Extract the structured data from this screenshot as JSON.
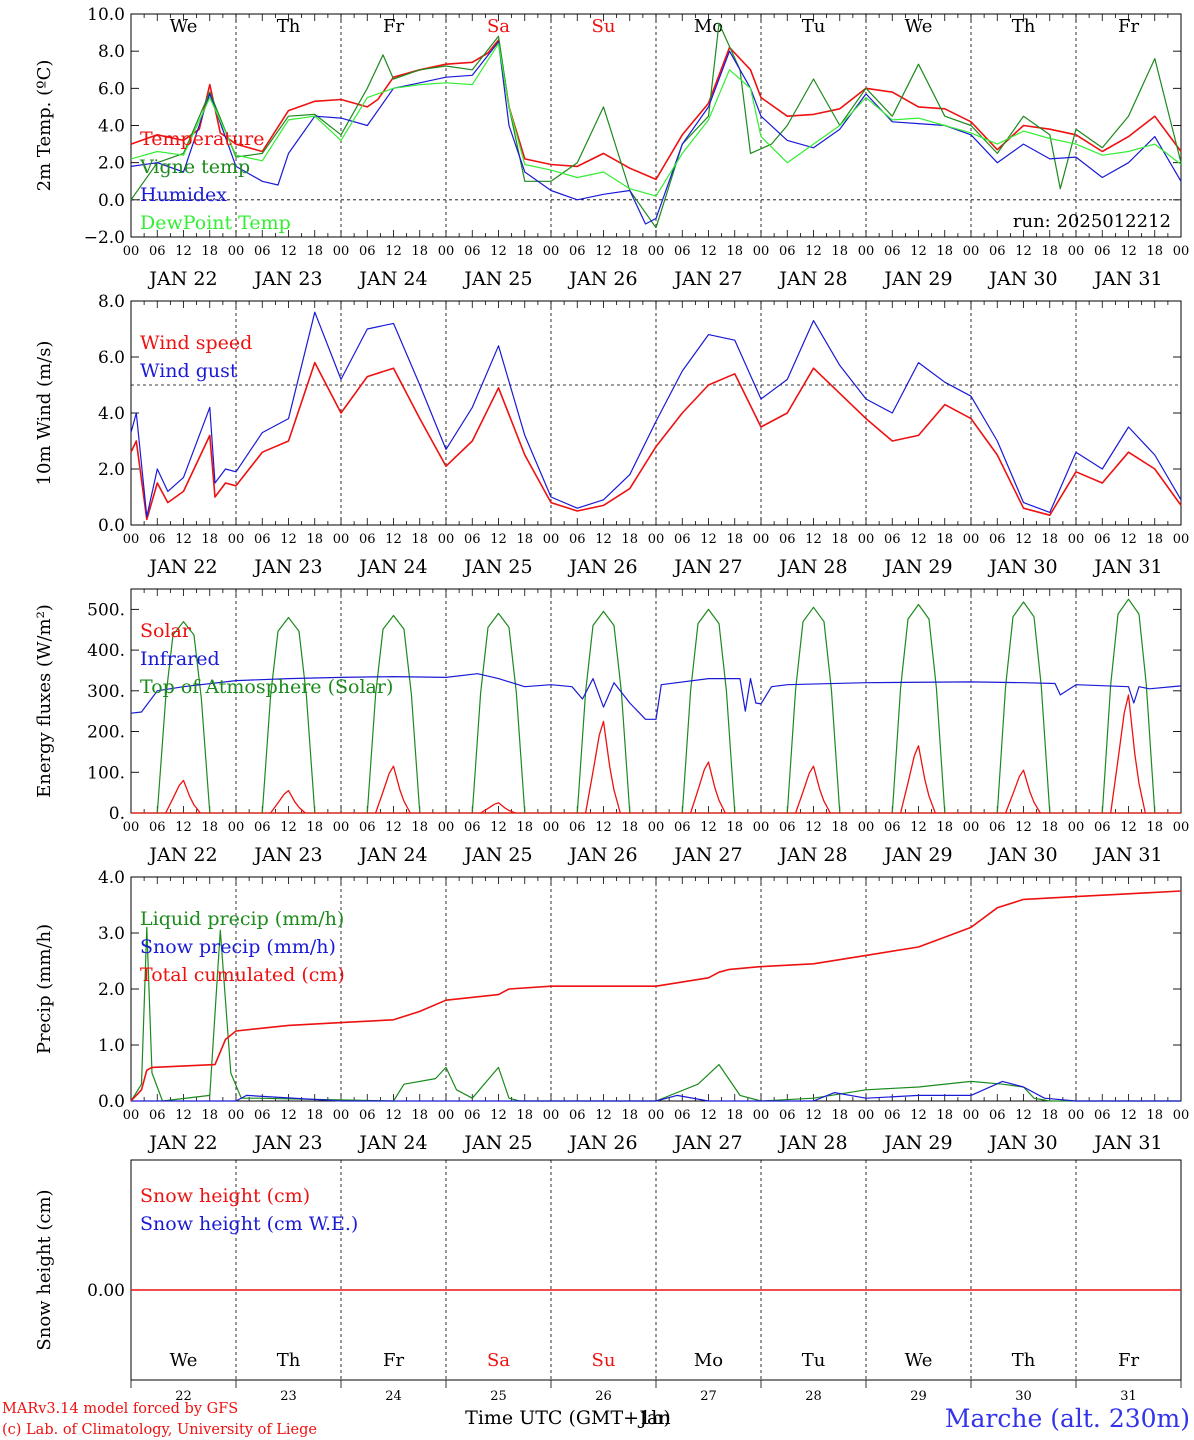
{
  "colors": {
    "red": "#ee1111",
    "green": "#1c8a1c",
    "blue": "#1a1ad6",
    "lightgreen": "#33ee33",
    "darkblue": "#1010b0",
    "title_blue": "#3333ee"
  },
  "x_axis": {
    "hour_labels": [
      "00",
      "06",
      "12",
      "18"
    ],
    "final_hour_label": "00",
    "date_labels": [
      "JAN 22",
      "JAN 23",
      "JAN 24",
      "JAN 25",
      "JAN 26",
      "JAN 27",
      "JAN 28",
      "JAN 29",
      "JAN 30",
      "JAN 31"
    ],
    "weekday_labels": [
      "We",
      "Th",
      "Fr",
      "Sa",
      "Su",
      "Mo",
      "Tu",
      "We",
      "Th",
      "Fr"
    ],
    "weekday_colors": [
      "black",
      "black",
      "black",
      "red",
      "red",
      "black",
      "black",
      "black",
      "black",
      "black"
    ],
    "day_numbers": [
      "22",
      "23",
      "24",
      "25",
      "26",
      "27",
      "28",
      "29",
      "30",
      "31"
    ],
    "xlabel": "Time UTC (GMT+1h)",
    "xlabel_overlap": "Jan"
  },
  "footer": {
    "credit_line1": "MARv3.14 model forced by GFS",
    "credit_line2": "(c) Lab. of Climatology, University of Liege",
    "station": "Marche (alt. 230m)"
  },
  "chart_data": [
    {
      "type": "line",
      "ylabel": "2m Temp. (ºC)",
      "ylim": [
        -2,
        10
      ],
      "ytick_values": [
        -2,
        0,
        2,
        4,
        6,
        8,
        10
      ],
      "ytick_labels": [
        "−2.0",
        "0.0",
        "2.0",
        "4.0",
        "6.0",
        "8.0",
        "10.0"
      ],
      "ref_line": 0,
      "annotation": "run: 2025012212",
      "legend": [
        "Temperature",
        "Vigne temp",
        "Humidex",
        "DewPoint Temp"
      ],
      "x_unit": "days since JAN 22 00 UTC",
      "series": [
        {
          "name": "Temperature",
          "color": "red",
          "x": [
            0,
            0.25,
            0.5,
            0.65,
            0.75,
            0.85,
            1.0,
            1.25,
            1.5,
            1.75,
            2.0,
            2.25,
            2.35,
            2.5,
            2.75,
            3.0,
            3.25,
            3.4,
            3.5,
            3.6,
            3.75,
            4.0,
            4.25,
            4.5,
            4.75,
            5.0,
            5.25,
            5.5,
            5.7,
            5.9,
            6.0,
            6.25,
            6.5,
            6.75,
            7.0,
            7.25,
            7.5,
            7.75,
            8.0,
            8.25,
            8.5,
            8.75,
            9.0,
            9.25,
            9.5,
            9.75,
            10.0
          ],
          "y": [
            3.0,
            3.5,
            3.2,
            3.8,
            6.2,
            3.6,
            3.0,
            2.6,
            4.8,
            5.3,
            5.4,
            5.0,
            5.4,
            6.6,
            7.0,
            7.3,
            7.4,
            7.9,
            8.6,
            5.0,
            2.2,
            1.9,
            1.8,
            2.5,
            1.7,
            1.1,
            3.5,
            5.2,
            8.2,
            7.0,
            5.5,
            4.5,
            4.6,
            4.9,
            6.0,
            5.8,
            5.0,
            4.9,
            4.2,
            2.7,
            4.0,
            3.8,
            3.5,
            2.6,
            3.4,
            4.5,
            2.6
          ]
        },
        {
          "name": "Vigne temp",
          "color": "green",
          "x": [
            0,
            0.25,
            0.5,
            0.75,
            1.0,
            1.25,
            1.5,
            1.75,
            2.0,
            2.25,
            2.4,
            2.5,
            2.75,
            3.0,
            3.25,
            3.5,
            3.6,
            3.75,
            4.0,
            4.25,
            4.5,
            4.75,
            5.0,
            5.25,
            5.5,
            5.6,
            5.8,
            5.9,
            6.1,
            6.25,
            6.5,
            6.75,
            7.0,
            7.25,
            7.5,
            7.75,
            8.0,
            8.25,
            8.5,
            8.75,
            8.85,
            9.0,
            9.25,
            9.5,
            9.75,
            10.0
          ],
          "y": [
            0.0,
            2.0,
            2.5,
            5.8,
            2.3,
            2.5,
            4.5,
            4.6,
            3.5,
            6.0,
            7.8,
            6.5,
            7.0,
            7.2,
            7.0,
            8.8,
            5.0,
            1.0,
            1.0,
            2.0,
            5.0,
            0.5,
            -1.5,
            3.0,
            4.5,
            9.5,
            7.0,
            2.5,
            3.0,
            4.0,
            6.5,
            4.0,
            6.0,
            4.5,
            7.3,
            4.5,
            4.0,
            2.5,
            4.5,
            3.5,
            0.6,
            3.8,
            2.8,
            4.5,
            7.6,
            2.0
          ]
        },
        {
          "name": "Humidex",
          "color": "blue",
          "x": [
            0,
            0.25,
            0.5,
            0.75,
            1.0,
            1.25,
            1.4,
            1.5,
            1.75,
            2.0,
            2.25,
            2.5,
            2.75,
            3.0,
            3.25,
            3.5,
            3.6,
            3.75,
            4.0,
            4.25,
            4.5,
            4.75,
            4.9,
            5.0,
            5.25,
            5.5,
            5.7,
            5.9,
            6.0,
            6.25,
            6.5,
            6.75,
            7.0,
            7.25,
            7.5,
            7.75,
            8.0,
            8.25,
            8.5,
            8.75,
            9.0,
            9.25,
            9.5,
            9.75,
            10.0
          ],
          "y": [
            1.8,
            2.0,
            1.5,
            5.7,
            1.8,
            1.0,
            0.8,
            2.5,
            4.5,
            4.4,
            4.0,
            6.0,
            6.3,
            6.6,
            6.7,
            8.5,
            4.0,
            1.5,
            0.5,
            0.0,
            0.3,
            0.5,
            -1.3,
            -1.0,
            3.0,
            5.0,
            8.0,
            6.0,
            4.5,
            3.2,
            2.8,
            3.8,
            5.7,
            4.2,
            4.1,
            4.0,
            3.5,
            2.0,
            3.0,
            2.2,
            2.3,
            1.2,
            2.0,
            3.4,
            1.0
          ]
        },
        {
          "name": "DewPoint Temp",
          "color": "lightgreen",
          "x": [
            0,
            0.25,
            0.5,
            0.75,
            1.0,
            1.25,
            1.5,
            1.75,
            2.0,
            2.25,
            2.5,
            2.75,
            3.0,
            3.25,
            3.5,
            3.6,
            3.75,
            4.0,
            4.25,
            4.5,
            4.75,
            5.0,
            5.25,
            5.5,
            5.7,
            5.9,
            6.0,
            6.25,
            6.5,
            6.75,
            7.0,
            7.25,
            7.5,
            7.75,
            8.0,
            8.25,
            8.5,
            8.75,
            9.0,
            9.25,
            9.5,
            9.75,
            10.0
          ],
          "y": [
            2.2,
            2.6,
            2.4,
            5.5,
            2.4,
            2.1,
            4.3,
            4.5,
            3.2,
            5.5,
            6.0,
            6.2,
            6.3,
            6.2,
            8.4,
            5.0,
            1.9,
            1.6,
            1.2,
            1.5,
            0.6,
            0.2,
            2.5,
            4.3,
            7.0,
            6.0,
            3.4,
            2.0,
            3.0,
            4.0,
            5.5,
            4.3,
            4.4,
            4.0,
            3.6,
            3.0,
            3.7,
            3.3,
            3.0,
            2.4,
            2.6,
            3.0,
            1.9
          ]
        }
      ]
    },
    {
      "type": "line",
      "ylabel": "10m Wind (m/s)",
      "ylim": [
        0,
        8
      ],
      "ytick_values": [
        0,
        2,
        4,
        6,
        8
      ],
      "ytick_labels": [
        "0.0",
        "2.0",
        "4.0",
        "6.0",
        "8.0"
      ],
      "ref_line": 5,
      "legend": [
        "Wind speed",
        "Wind gust"
      ],
      "series": [
        {
          "name": "Wind speed",
          "color": "red",
          "x": [
            0,
            0.05,
            0.15,
            0.25,
            0.35,
            0.5,
            0.75,
            0.8,
            0.9,
            1.0,
            1.25,
            1.5,
            1.75,
            2.0,
            2.25,
            2.5,
            2.75,
            3.0,
            3.25,
            3.5,
            3.75,
            4.0,
            4.25,
            4.5,
            4.75,
            5.0,
            5.25,
            5.5,
            5.75,
            6.0,
            6.25,
            6.5,
            6.75,
            7.0,
            7.25,
            7.5,
            7.75,
            8.0,
            8.25,
            8.5,
            8.75,
            9.0,
            9.25,
            9.5,
            9.75,
            10.0
          ],
          "y": [
            2.6,
            3.0,
            0.2,
            1.5,
            0.8,
            1.2,
            3.2,
            1.0,
            1.5,
            1.4,
            2.6,
            3.0,
            5.8,
            4.0,
            5.3,
            5.6,
            3.8,
            2.1,
            3.0,
            4.9,
            2.5,
            0.8,
            0.5,
            0.7,
            1.3,
            2.8,
            4.0,
            5.0,
            5.4,
            3.5,
            4.0,
            5.6,
            4.7,
            3.8,
            3.0,
            3.2,
            4.3,
            3.8,
            2.5,
            0.6,
            0.35,
            1.9,
            1.5,
            2.6,
            2.0,
            0.7
          ]
        },
        {
          "name": "Wind gust",
          "color": "blue",
          "x": [
            0,
            0.05,
            0.15,
            0.25,
            0.35,
            0.5,
            0.75,
            0.8,
            0.9,
            1.0,
            1.25,
            1.5,
            1.75,
            2.0,
            2.25,
            2.5,
            2.75,
            3.0,
            3.25,
            3.5,
            3.75,
            4.0,
            4.25,
            4.5,
            4.75,
            5.0,
            5.25,
            5.5,
            5.75,
            6.0,
            6.25,
            6.5,
            6.75,
            7.0,
            7.25,
            7.5,
            7.75,
            8.0,
            8.25,
            8.5,
            8.75,
            9.0,
            9.25,
            9.5,
            9.75,
            10.0
          ],
          "y": [
            3.3,
            4.0,
            0.3,
            2.0,
            1.2,
            1.7,
            4.2,
            1.5,
            2.0,
            1.9,
            3.3,
            3.8,
            7.6,
            5.2,
            7.0,
            7.2,
            5.0,
            2.7,
            4.2,
            6.4,
            3.2,
            1.0,
            0.6,
            0.9,
            1.8,
            3.7,
            5.5,
            6.8,
            6.6,
            4.5,
            5.2,
            7.3,
            5.7,
            4.5,
            4.0,
            5.8,
            5.1,
            4.6,
            3.0,
            0.8,
            0.45,
            2.6,
            2.0,
            3.5,
            2.5,
            0.9
          ]
        }
      ]
    },
    {
      "type": "line",
      "ylabel": "Energy fluxes (W/m²)",
      "ylim": [
        0,
        550
      ],
      "ytick_values": [
        0,
        100,
        200,
        300,
        400,
        500
      ],
      "ytick_labels": [
        "0.",
        "100.",
        "200.",
        "300.",
        "400.",
        "500."
      ],
      "legend": [
        "Solar",
        "Infrared",
        "Top of Atmosphere (Solar)"
      ],
      "toa_daily_peaks": [
        470,
        480,
        485,
        490,
        495,
        500,
        505,
        512,
        518,
        525
      ],
      "solar_daily_peaks": [
        80,
        55,
        115,
        25,
        225,
        125,
        115,
        165,
        105,
        290
      ],
      "series": [
        {
          "name": "Infrared",
          "color": "blue",
          "x": [
            0,
            0.1,
            0.25,
            0.5,
            1.0,
            1.5,
            2.0,
            2.5,
            3.0,
            3.3,
            3.5,
            3.75,
            4.0,
            4.2,
            4.3,
            4.4,
            4.5,
            4.6,
            4.75,
            4.9,
            5.0,
            5.05,
            5.5,
            5.8,
            5.85,
            5.9,
            5.95,
            6.0,
            6.1,
            6.25,
            7.0,
            8.0,
            8.5,
            8.8,
            8.85,
            9.0,
            9.5,
            9.55,
            9.6,
            9.7,
            10.0
          ],
          "y": [
            245,
            248,
            300,
            310,
            325,
            330,
            333,
            335,
            333,
            342,
            330,
            310,
            315,
            310,
            280,
            330,
            260,
            320,
            270,
            230,
            230,
            315,
            330,
            330,
            250,
            330,
            270,
            268,
            310,
            315,
            320,
            322,
            320,
            318,
            290,
            315,
            310,
            270,
            310,
            305,
            312
          ]
        }
      ]
    },
    {
      "type": "line",
      "ylabel": "Precip (mm/h)",
      "ylim": [
        0,
        4
      ],
      "ytick_values": [
        0,
        1,
        2,
        3,
        4
      ],
      "ytick_labels": [
        "0.0",
        "1.0",
        "2.0",
        "3.0",
        "4.0"
      ],
      "legend": [
        "Liquid precip (mm/h)",
        "Snow precip (mm/h)",
        "Total cumulated (cm)"
      ],
      "series": [
        {
          "name": "Liquid precip (mm/h)",
          "color": "green",
          "x": [
            0,
            0.1,
            0.15,
            0.2,
            0.3,
            0.75,
            0.85,
            0.95,
            1.05,
            1.2,
            2.5,
            2.6,
            2.9,
            3.0,
            3.1,
            3.25,
            3.5,
            3.6,
            3.7,
            4.0,
            5.0,
            5.4,
            5.6,
            5.8,
            6.0,
            6.5,
            7.0,
            7.5,
            8.0,
            8.3,
            8.5,
            8.6,
            8.75,
            10.0
          ],
          "y": [
            0,
            0.3,
            3.1,
            0.5,
            0,
            0.1,
            3.05,
            0.5,
            0.05,
            0.05,
            0,
            0.3,
            0.4,
            0.6,
            0.2,
            0.05,
            0.6,
            0.05,
            0,
            0,
            0,
            0.3,
            0.65,
            0.1,
            0,
            0.05,
            0.2,
            0.25,
            0.35,
            0.3,
            0.25,
            0.05,
            0,
            0
          ]
        },
        {
          "name": "Snow precip (mm/h)",
          "color": "blue",
          "x": [
            0,
            1.0,
            1.1,
            2.0,
            5.0,
            5.2,
            5.5,
            6.5,
            6.7,
            7.0,
            7.5,
            8.0,
            8.3,
            8.5,
            8.7,
            9.0,
            10.0
          ],
          "y": [
            0,
            0,
            0.1,
            0,
            0,
            0.1,
            0,
            0,
            0.15,
            0.05,
            0.1,
            0.1,
            0.35,
            0.25,
            0.05,
            0,
            0
          ]
        },
        {
          "name": "Total cumulated (cm)",
          "color": "red",
          "x": [
            0,
            0.1,
            0.15,
            0.2,
            0.8,
            0.9,
            1.0,
            1.5,
            2.0,
            2.5,
            2.75,
            3.0,
            3.5,
            3.6,
            4.0,
            5.0,
            5.5,
            5.6,
            5.7,
            6.0,
            6.5,
            7.0,
            7.5,
            8.0,
            8.25,
            8.5,
            9.0,
            9.5,
            10.0
          ],
          "y": [
            0,
            0.2,
            0.55,
            0.6,
            0.65,
            1.1,
            1.25,
            1.35,
            1.4,
            1.45,
            1.6,
            1.8,
            1.9,
            2.0,
            2.05,
            2.05,
            2.2,
            2.3,
            2.35,
            2.4,
            2.45,
            2.6,
            2.75,
            3.1,
            3.45,
            3.6,
            3.65,
            3.7,
            3.75
          ]
        }
      ]
    },
    {
      "type": "line",
      "ylabel": "Snow height (cm)",
      "ytick_values": [
        0
      ],
      "ytick_labels": [
        "0.00"
      ],
      "legend": [
        "Snow height (cm)",
        "Snow height (cm W.E.)"
      ],
      "series": [
        {
          "name": "Snow height (cm)",
          "color": "red",
          "x": [
            0,
            10
          ],
          "y": [
            0,
            0
          ]
        }
      ]
    }
  ]
}
